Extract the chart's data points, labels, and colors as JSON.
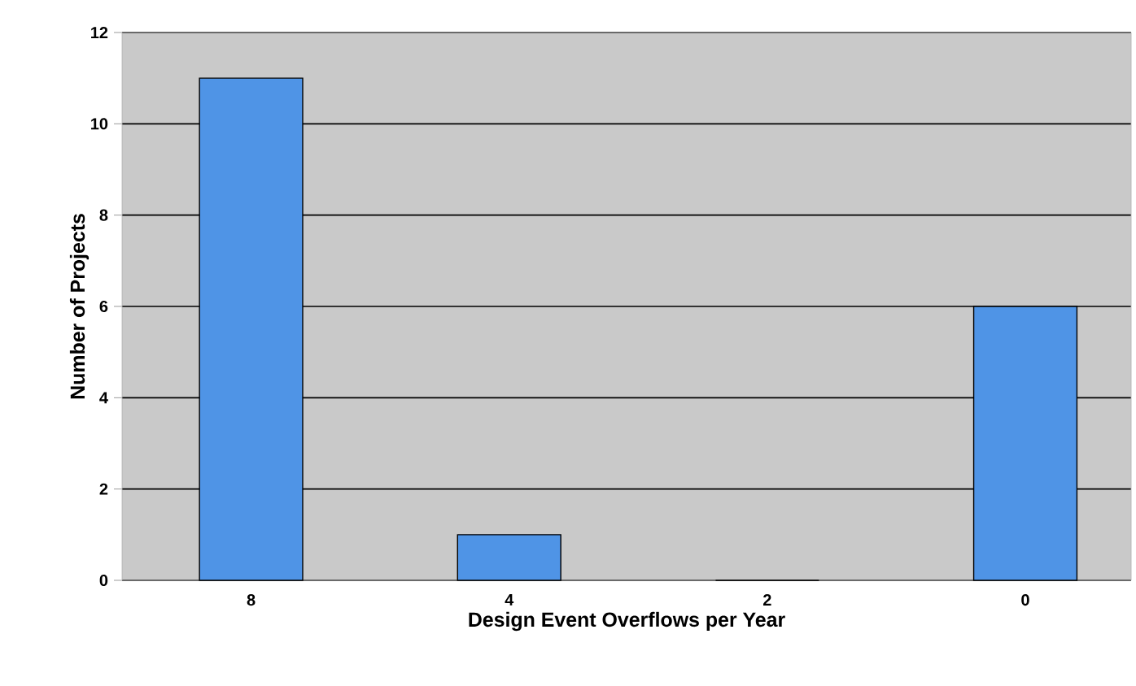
{
  "chart_data": {
    "type": "bar",
    "xlabel": "Design Event Overflows per Year",
    "ylabel": "Number of Projects",
    "categories": [
      "8",
      "4",
      "2",
      "0"
    ],
    "values": [
      11,
      1,
      0,
      6
    ],
    "color": "#4f94e6",
    "ylim": [
      0,
      12
    ],
    "yticks": [
      0,
      2,
      4,
      6,
      8,
      10,
      12
    ],
    "grid": "y"
  }
}
